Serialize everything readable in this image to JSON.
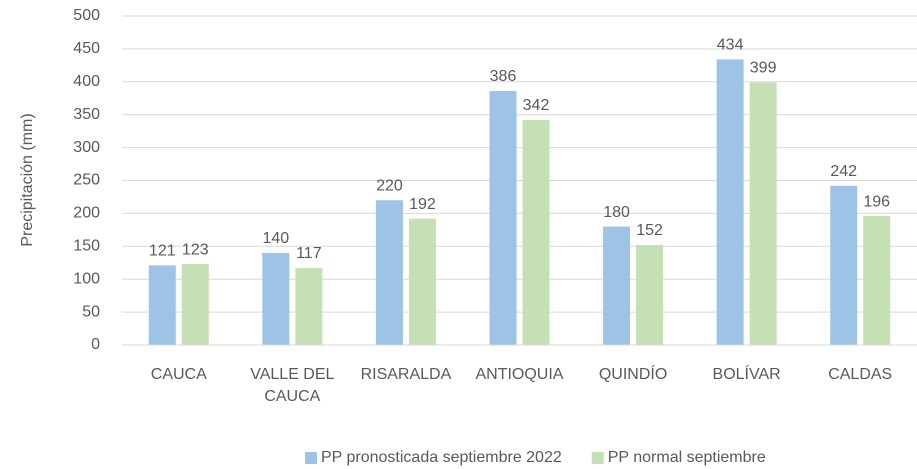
{
  "chart_data": {
    "type": "bar",
    "y_label": "Precipitación (mm)",
    "categories": [
      "CAUCA",
      "VALLE DEL CAUCA",
      "RISARALDA",
      "ANTIOQUIA",
      "QUINDÍO",
      "BOLÍVAR",
      "CALDAS"
    ],
    "series": [
      {
        "name": "PP pronosticada septiembre 2022",
        "color": "#9dc3e6",
        "values": [
          121,
          140,
          220,
          386,
          180,
          434,
          242
        ]
      },
      {
        "name": "PP normal septiembre",
        "color": "#c5e0b4",
        "values": [
          123,
          117,
          192,
          342,
          152,
          399,
          196
        ]
      }
    ],
    "ylim": [
      0,
      500
    ],
    "yticks": [
      0,
      50,
      100,
      150,
      200,
      250,
      300,
      350,
      400,
      450,
      500
    ],
    "grid": true,
    "legend": "bottom"
  }
}
